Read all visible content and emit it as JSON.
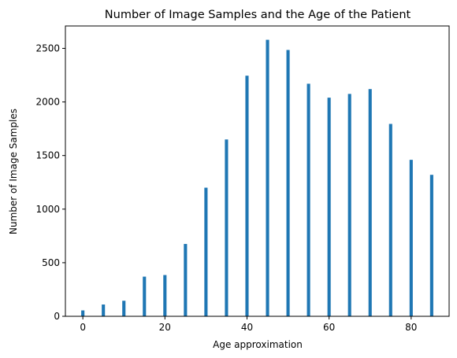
{
  "chart_data": {
    "type": "bar",
    "title": "Number of Image Samples and the Age of the Patient",
    "xlabel": "Age approximation",
    "ylabel": "Number of Image Samples",
    "x": [
      0,
      5,
      10,
      15,
      20,
      25,
      30,
      35,
      40,
      45,
      50,
      55,
      60,
      65,
      70,
      75,
      80,
      85
    ],
    "values": [
      55,
      110,
      145,
      370,
      385,
      675,
      1200,
      1650,
      2245,
      2580,
      2485,
      2170,
      2040,
      2075,
      2120,
      1795,
      1460,
      1320
    ],
    "xlim": [
      -4.25,
      89.25
    ],
    "ylim": [
      0,
      2709
    ],
    "xticks": [
      "0",
      "20",
      "40",
      "60",
      "80"
    ],
    "yticks": [
      "0",
      "500",
      "1000",
      "1500",
      "2000",
      "2500"
    ],
    "bar_color": "#1f77b4",
    "grid": false
  }
}
